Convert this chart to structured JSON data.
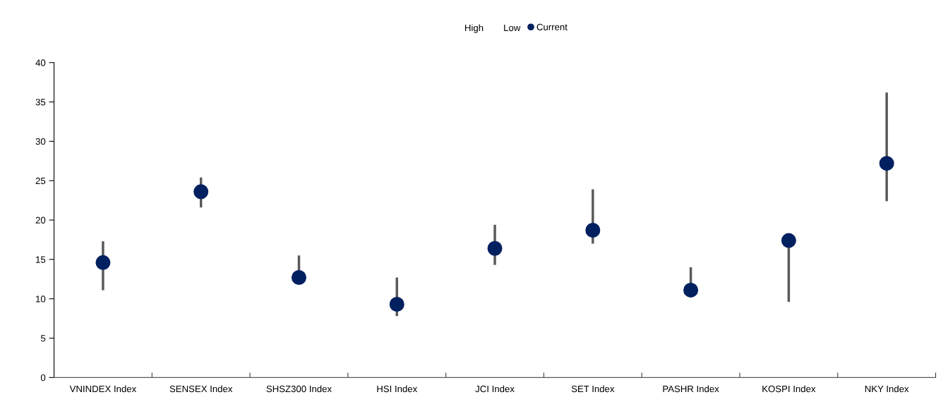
{
  "chart_data": {
    "type": "scatter",
    "categories": [
      "VNINDEX Index",
      "SENSEX Index",
      "SHSZ300 Index",
      "HSI Index",
      "JCI Index",
      "SET Index",
      "PASHR Index",
      "KOSPI Index",
      "NKY Index"
    ],
    "series": [
      {
        "name": "Current",
        "color": "#002060",
        "values": [
          14.6,
          23.6,
          12.7,
          9.3,
          16.4,
          18.7,
          11.1,
          17.4,
          27.2
        ],
        "errors": [
          [
            11.1,
            17.3
          ],
          [
            21.6,
            25.4
          ],
          [
            12.7,
            15.5
          ],
          [
            7.8,
            12.7
          ],
          [
            14.3,
            19.4
          ],
          [
            17.0,
            23.9
          ],
          [
            11.1,
            14.0
          ],
          [
            9.6,
            18.3
          ],
          [
            22.4,
            36.2
          ]
        ]
      }
    ],
    "annotations": [
      "High",
      "Low"
    ],
    "marker": "circle",
    "ylim": [
      0,
      40
    ],
    "yticks": [
      0,
      5,
      10,
      15,
      20,
      25,
      30,
      35,
      40
    ],
    "legend": "top"
  }
}
